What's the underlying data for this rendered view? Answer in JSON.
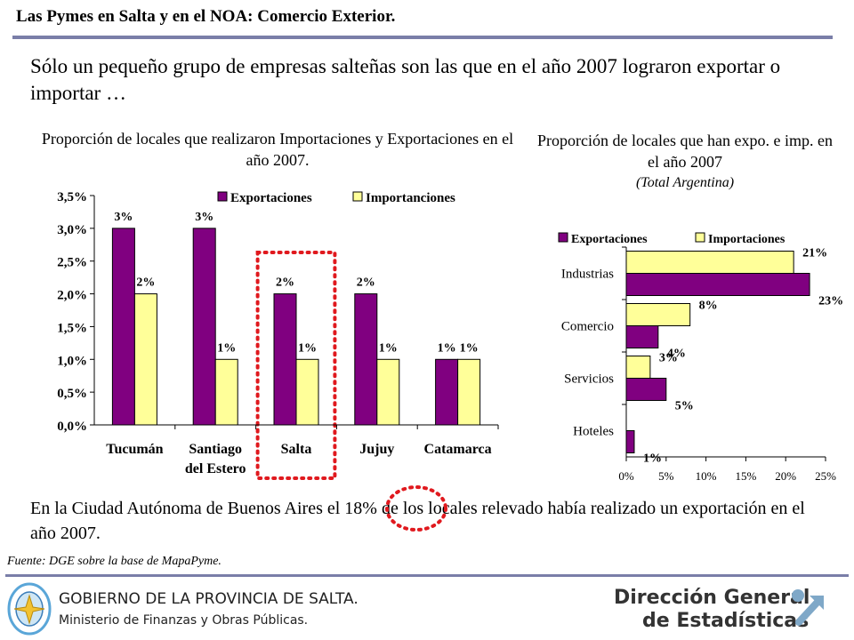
{
  "slide": {
    "title": "Las Pymes en Salta y en el NOA: Comercio Exterior.",
    "headline": "Sólo un pequeño grupo de empresas salteñas son las que en el año 2007 lograron exportar o importar …",
    "caba_note": "En la Ciudad Autónoma de Buenos Aires el 18% de los locales relevado había realizado un exportación en el año 2007.",
    "source": "Fuente: DGE sobre la base de MapaPyme."
  },
  "footer": {
    "gov_line1": "GOBIERNO DE LA PROVINCIA DE SALTA.",
    "gov_line2": "Ministerio de Finanzas y Obras Públicas.",
    "dge_line1": "Dirección General",
    "dge_line2": "de Estadísticas"
  },
  "colors": {
    "exportaciones": "#800080",
    "importaciones": "#FFFF99",
    "highlight": "#e0191e",
    "rule": "#7a7ea8"
  },
  "chart_data": [
    {
      "type": "bar",
      "title": "Proporción de locales que realizaron Importaciones y Exportaciones en el año 2007.",
      "categories": [
        "Tucumán",
        "Santiago del Estero",
        "Salta",
        "Jujuy",
        "Catamarca"
      ],
      "category_lines": [
        [
          "Tucumán"
        ],
        [
          "Santiago",
          "del Estero"
        ],
        [
          "Salta"
        ],
        [
          "Jujuy"
        ],
        [
          "Catamarca"
        ]
      ],
      "series": [
        {
          "name": "Exportaciones",
          "values": [
            3.0,
            3.0,
            2.0,
            2.0,
            1.0
          ],
          "labels": [
            "3%",
            "3%",
            "2%",
            "2%",
            "1%"
          ]
        },
        {
          "name": "Importanciones",
          "values": [
            2.0,
            1.0,
            1.0,
            1.0,
            1.0
          ],
          "labels": [
            "2%",
            "1%",
            "1%",
            "1%",
            "1%"
          ]
        }
      ],
      "y_ticks": [
        0,
        0.5,
        1.0,
        1.5,
        2.0,
        2.5,
        3.0,
        3.5
      ],
      "y_tick_labels": [
        "0,0%",
        "0,5%",
        "1,0%",
        "1,5%",
        "2,0%",
        "2,5%",
        "3,0%",
        "3,5%"
      ],
      "ylim": [
        0,
        3.5
      ],
      "legend_position": "top-right",
      "grid": false,
      "highlighted_category": "Salta"
    },
    {
      "type": "bar",
      "orientation": "horizontal",
      "title": "Proporción de locales que han expo. e imp. en el año 2007",
      "subtitle": "(Total Argentina)",
      "categories": [
        "Industrias",
        "Comercio",
        "Servicios",
        "Hoteles"
      ],
      "series": [
        {
          "name": "Exportaciones",
          "values": [
            23,
            4,
            5,
            1
          ],
          "labels": [
            "23%",
            "4%",
            "5%",
            "1%"
          ]
        },
        {
          "name": "Importaciones",
          "values": [
            21,
            8,
            3,
            null
          ],
          "labels": [
            "21%",
            "8%",
            "3%",
            ""
          ]
        }
      ],
      "x_ticks": [
        0,
        5,
        10,
        15,
        20,
        25
      ],
      "x_tick_labels": [
        "0%",
        "5%",
        "10%",
        "15%",
        "20%",
        "25%"
      ],
      "xlim": [
        0,
        25
      ],
      "legend_position": "top",
      "grid": false
    }
  ]
}
